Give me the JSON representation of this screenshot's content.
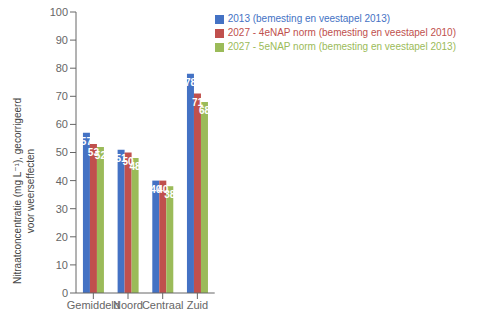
{
  "chart_data": {
    "type": "bar",
    "categories": [
      "Gemiddeld",
      "Noord",
      "Centraal",
      "Zuid"
    ],
    "series": [
      {
        "name": "2013 (bemesting en veestapel 2013)",
        "color": "#4472C4",
        "values": [
          57,
          51,
          40,
          78
        ]
      },
      {
        "name": "2027 - 4eNAP norm (bemesting en veestapel 2010)",
        "color": "#C0504D",
        "values": [
          53,
          50,
          40,
          71
        ]
      },
      {
        "name": "2027 - 5eNAP norm (bemesting en veestapel 2013)",
        "color": "#9BBB59",
        "values": [
          52,
          48,
          38,
          68
        ]
      }
    ],
    "ylabel": "Nitraatconcentratie (mg L⁻¹), gecorrigeerd\nvoor weerseffecten",
    "ylim": [
      0,
      100
    ],
    "yticks": [
      0,
      10,
      20,
      30,
      40,
      50,
      60,
      70,
      80,
      90,
      100
    ],
    "grid": false,
    "legend": "upper right",
    "data_labels": true
  }
}
